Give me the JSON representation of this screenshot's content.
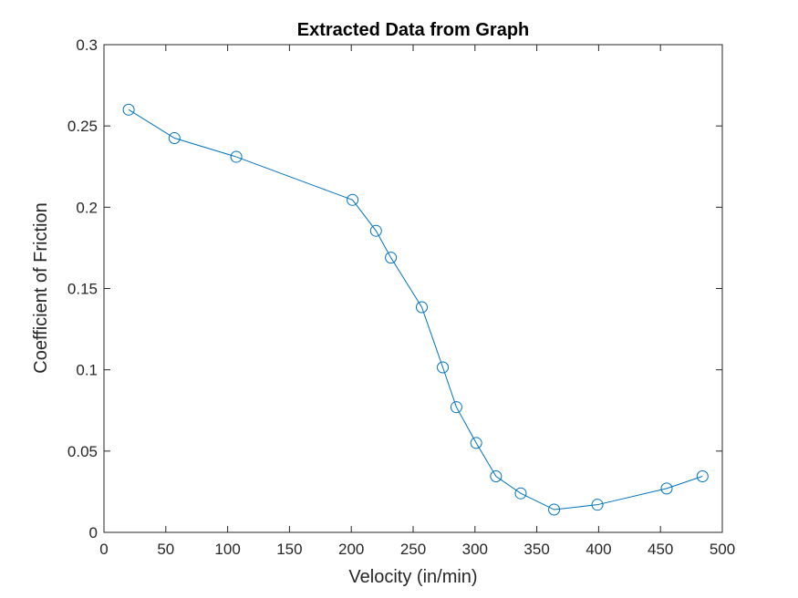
{
  "chart_data": {
    "type": "line",
    "title": "Extracted Data from Graph",
    "xlabel": "Velocity (in/min)",
    "ylabel": "Coefficient of Friction",
    "xlim": [
      0,
      500
    ],
    "ylim": [
      0,
      0.3
    ],
    "xticks": [
      0,
      50,
      100,
      150,
      200,
      250,
      300,
      350,
      400,
      450,
      500
    ],
    "yticks": [
      0,
      0.05,
      0.1,
      0.15,
      0.2,
      0.25,
      0.3
    ],
    "xtick_labels": [
      "0",
      "50",
      "100",
      "150",
      "200",
      "250",
      "300",
      "350",
      "400",
      "450",
      "500"
    ],
    "ytick_labels": [
      "0",
      "0.05",
      "0.1",
      "0.15",
      "0.2",
      "0.25",
      "0.3"
    ],
    "grid": false,
    "marker": "circle-open",
    "series": [
      {
        "color": "#0072BD",
        "x": [
          20,
          57,
          107,
          201,
          220,
          232,
          257,
          274,
          285,
          301,
          317,
          337,
          364,
          399,
          455,
          484
        ],
        "y": [
          0.26,
          0.2425,
          0.231,
          0.2045,
          0.1855,
          0.169,
          0.1385,
          0.1015,
          0.077,
          0.055,
          0.0345,
          0.024,
          0.014,
          0.017,
          0.027,
          0.0345
        ]
      }
    ]
  }
}
